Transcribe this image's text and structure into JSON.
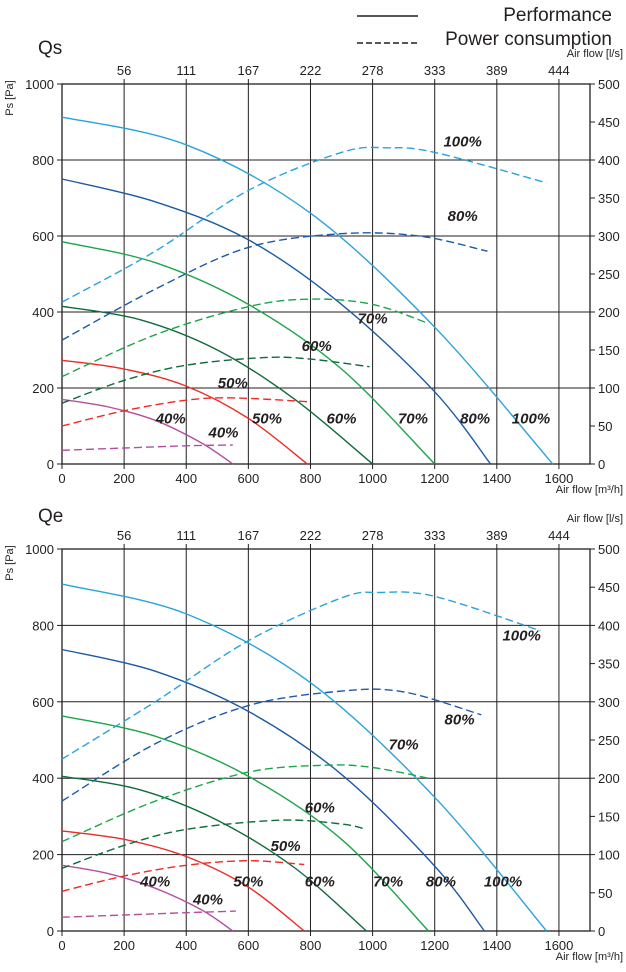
{
  "legend": {
    "performance_label": "Performance",
    "power_label": "Power consumption"
  },
  "colors": {
    "100%": "#29a3dc",
    "80%": "#1d5aa6",
    "70%": "#1ca64b",
    "60%": "#0f6b3b",
    "50%": "#ee2a24",
    "40%": "#b54ea0",
    "grid": "#231f20"
  },
  "chart_data": [
    {
      "type": "line",
      "title": "Qs",
      "xlabel": "Air flow [m³/h]",
      "x2label": "Air flow [l/s]",
      "ylabel": "Ps [Pa]",
      "y2label": "",
      "xlim": [
        0,
        1700
      ],
      "ylim": [
        0,
        1000
      ],
      "y2lim": [
        0,
        500
      ],
      "x_ticks": [
        "0",
        "200",
        "400",
        "600",
        "800",
        "1000",
        "1200",
        "1400",
        "1600"
      ],
      "x2_ticks": [
        "56",
        "111",
        "167",
        "222",
        "278",
        "333",
        "389",
        "444"
      ],
      "y_ticks": [
        "0",
        "200",
        "400",
        "600",
        "800",
        "1000"
      ],
      "y2_ticks": [
        "0",
        "50",
        "100",
        "150",
        "200",
        "250",
        "300",
        "350",
        "400",
        "450",
        "500"
      ],
      "grid": true,
      "series": [
        {
          "name": "100%",
          "kind": "performance",
          "axis": "left",
          "x": [
            0,
            400,
            800,
            1200,
            1580
          ],
          "y": [
            913,
            840,
            660,
            360,
            0
          ]
        },
        {
          "name": "80%",
          "kind": "performance",
          "axis": "left",
          "x": [
            0,
            300,
            600,
            900,
            1200,
            1380
          ],
          "y": [
            750,
            690,
            590,
            420,
            190,
            0
          ]
        },
        {
          "name": "70%",
          "kind": "performance",
          "axis": "left",
          "x": [
            0,
            300,
            600,
            900,
            1200
          ],
          "y": [
            585,
            530,
            420,
            250,
            0
          ]
        },
        {
          "name": "60%",
          "kind": "performance",
          "axis": "left",
          "x": [
            0,
            250,
            500,
            750,
            1000
          ],
          "y": [
            415,
            380,
            300,
            170,
            0
          ]
        },
        {
          "name": "50%",
          "kind": "performance",
          "axis": "left",
          "x": [
            0,
            200,
            400,
            600,
            790
          ],
          "y": [
            273,
            250,
            205,
            120,
            0
          ]
        },
        {
          "name": "40%",
          "kind": "performance",
          "axis": "left",
          "x": [
            0,
            150,
            300,
            450,
            550
          ],
          "y": [
            170,
            150,
            115,
            55,
            0
          ]
        },
        {
          "name": "100%",
          "kind": "power",
          "axis": "right",
          "x": [
            0,
            300,
            600,
            900,
            1050,
            1200,
            1560
          ],
          "y": [
            213,
            280,
            360,
            410,
            416,
            410,
            370
          ]
        },
        {
          "name": "80%",
          "kind": "power",
          "axis": "right",
          "x": [
            0,
            300,
            600,
            900,
            1150,
            1370
          ],
          "y": [
            163,
            230,
            285,
            303,
            300,
            280
          ]
        },
        {
          "name": "70%",
          "kind": "power",
          "axis": "right",
          "x": [
            0,
            300,
            600,
            800,
            1000,
            1180
          ],
          "y": [
            115,
            170,
            207,
            217,
            210,
            185
          ]
        },
        {
          "name": "60%",
          "kind": "power",
          "axis": "right",
          "x": [
            0,
            200,
            400,
            650,
            800,
            990
          ],
          "y": [
            80,
            110,
            130,
            140,
            138,
            128
          ]
        },
        {
          "name": "50%",
          "kind": "power",
          "axis": "right",
          "x": [
            0,
            200,
            400,
            550,
            790
          ],
          "y": [
            50,
            70,
            84,
            87,
            82
          ]
        },
        {
          "name": "40%",
          "kind": "power",
          "axis": "right",
          "x": [
            0,
            200,
            400,
            550
          ],
          "y": [
            18,
            21,
            24,
            25
          ]
        }
      ],
      "annotations": [
        {
          "text": "100%",
          "x": 1290,
          "y": 835,
          "axis": "left"
        },
        {
          "text": "80%",
          "x": 1290,
          "y": 640,
          "axis": "left"
        },
        {
          "text": "70%",
          "x": 1000,
          "y": 370,
          "axis": "left"
        },
        {
          "text": "60%",
          "x": 820,
          "y": 297,
          "axis": "left"
        },
        {
          "text": "50%",
          "x": 550,
          "y": 200,
          "axis": "left"
        },
        {
          "text": "50%",
          "x": 660,
          "y": 107,
          "axis": "left"
        },
        {
          "text": "60%",
          "x": 900,
          "y": 107,
          "axis": "left"
        },
        {
          "text": "70%",
          "x": 1130,
          "y": 107,
          "axis": "left"
        },
        {
          "text": "80%",
          "x": 1330,
          "y": 107,
          "axis": "left"
        },
        {
          "text": "100%",
          "x": 1510,
          "y": 107,
          "axis": "left"
        },
        {
          "text": "40%",
          "x": 350,
          "y": 107,
          "axis": "left"
        },
        {
          "text": "40%",
          "x": 520,
          "y": 70,
          "axis": "left"
        }
      ]
    },
    {
      "type": "line",
      "title": "Qe",
      "xlabel": "Air flow [m³/h]",
      "x2label": "Air flow [l/s]",
      "ylabel": "Ps [Pa]",
      "y2label": "",
      "xlim": [
        0,
        1700
      ],
      "ylim": [
        0,
        1000
      ],
      "y2lim": [
        0,
        500
      ],
      "x_ticks": [
        "0",
        "200",
        "400",
        "600",
        "800",
        "1000",
        "1200",
        "1400",
        "1600"
      ],
      "x2_ticks": [
        "56",
        "111",
        "167",
        "222",
        "278",
        "333",
        "389",
        "444"
      ],
      "y_ticks": [
        "0",
        "200",
        "400",
        "600",
        "800",
        "1000"
      ],
      "y2_ticks": [
        "0",
        "50",
        "100",
        "150",
        "200",
        "250",
        "300",
        "350",
        "400",
        "450",
        "500"
      ],
      "grid": true,
      "series": [
        {
          "name": "100%",
          "kind": "performance",
          "axis": "left",
          "x": [
            0,
            400,
            800,
            1200,
            1560
          ],
          "y": [
            908,
            830,
            650,
            350,
            0
          ]
        },
        {
          "name": "80%",
          "kind": "performance",
          "axis": "left",
          "x": [
            0,
            300,
            600,
            900,
            1200,
            1360
          ],
          "y": [
            737,
            680,
            575,
            410,
            170,
            0
          ]
        },
        {
          "name": "70%",
          "kind": "performance",
          "axis": "left",
          "x": [
            0,
            300,
            600,
            900,
            1180
          ],
          "y": [
            563,
            510,
            405,
            240,
            0
          ]
        },
        {
          "name": "60%",
          "kind": "performance",
          "axis": "left",
          "x": [
            0,
            250,
            500,
            750,
            980
          ],
          "y": [
            405,
            370,
            290,
            165,
            0
          ]
        },
        {
          "name": "50%",
          "kind": "performance",
          "axis": "left",
          "x": [
            0,
            200,
            400,
            600,
            780
          ],
          "y": [
            262,
            240,
            195,
            115,
            0
          ]
        },
        {
          "name": "40%",
          "kind": "performance",
          "axis": "left",
          "x": [
            0,
            150,
            300,
            450,
            550
          ],
          "y": [
            172,
            150,
            112,
            55,
            0
          ]
        },
        {
          "name": "100%",
          "kind": "power",
          "axis": "right",
          "x": [
            0,
            300,
            600,
            900,
            1020,
            1200,
            1540
          ],
          "y": [
            225,
            300,
            380,
            436,
            443,
            438,
            393
          ]
        },
        {
          "name": "80%",
          "kind": "power",
          "axis": "right",
          "x": [
            0,
            300,
            600,
            900,
            1100,
            1350
          ],
          "y": [
            170,
            245,
            295,
            314,
            313,
            283
          ]
        },
        {
          "name": "70%",
          "kind": "power",
          "axis": "right",
          "x": [
            0,
            300,
            600,
            850,
            1000,
            1180
          ],
          "y": [
            117,
            170,
            208,
            217,
            214,
            200
          ]
        },
        {
          "name": "60%",
          "kind": "power",
          "axis": "right",
          "x": [
            0,
            200,
            400,
            700,
            900,
            980
          ],
          "y": [
            82,
            112,
            133,
            145,
            140,
            133
          ]
        },
        {
          "name": "50%",
          "kind": "power",
          "axis": "right",
          "x": [
            0,
            200,
            400,
            600,
            780
          ],
          "y": [
            52,
            72,
            86,
            92,
            87
          ]
        },
        {
          "name": "40%",
          "kind": "power",
          "axis": "right",
          "x": [
            0,
            200,
            400,
            560
          ],
          "y": [
            18,
            21,
            24,
            26
          ]
        }
      ],
      "annotations": [
        {
          "text": "100%",
          "x": 1480,
          "y": 760,
          "axis": "left"
        },
        {
          "text": "80%",
          "x": 1280,
          "y": 540,
          "axis": "left"
        },
        {
          "text": "70%",
          "x": 1100,
          "y": 475,
          "axis": "left"
        },
        {
          "text": "60%",
          "x": 830,
          "y": 310,
          "axis": "left"
        },
        {
          "text": "50%",
          "x": 720,
          "y": 210,
          "axis": "left"
        },
        {
          "text": "50%",
          "x": 600,
          "y": 117,
          "axis": "left"
        },
        {
          "text": "60%",
          "x": 830,
          "y": 117,
          "axis": "left"
        },
        {
          "text": "70%",
          "x": 1050,
          "y": 117,
          "axis": "left"
        },
        {
          "text": "80%",
          "x": 1220,
          "y": 117,
          "axis": "left"
        },
        {
          "text": "100%",
          "x": 1420,
          "y": 117,
          "axis": "left"
        },
        {
          "text": "40%",
          "x": 300,
          "y": 117,
          "axis": "left"
        },
        {
          "text": "40%",
          "x": 470,
          "y": 70,
          "axis": "left"
        }
      ]
    }
  ]
}
